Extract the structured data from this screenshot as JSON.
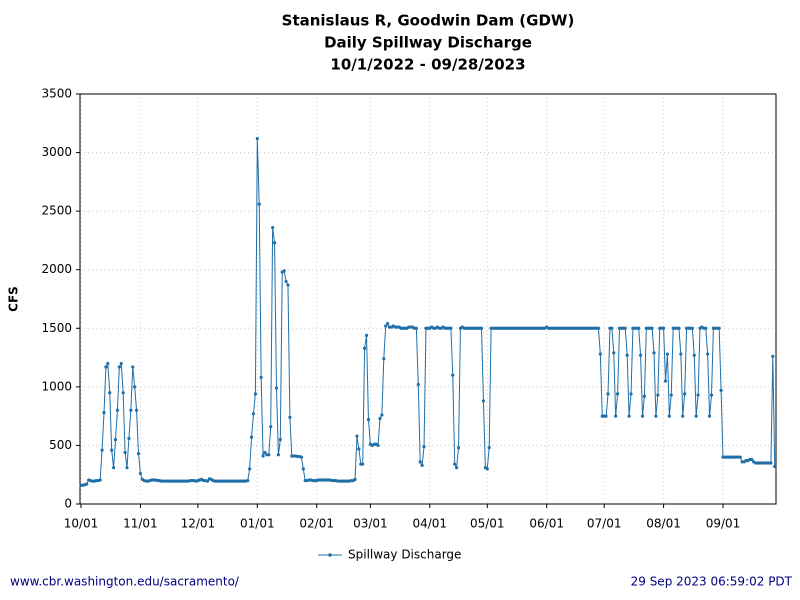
{
  "chart_data": {
    "type": "line",
    "title": "Stanislaus R, Goodwin Dam (GDW)",
    "subtitle": "Daily Spillway Discharge",
    "date_range": "10/1/2022 - 09/28/2023",
    "y_label": "CFS",
    "footer_left": "www.cbr.washington.edu/sacramento/",
    "footer_right": "29 Sep 2023 06:59:02 PDT",
    "ylim": [
      0,
      3500
    ],
    "yticks": [
      0,
      500,
      1000,
      1500,
      2000,
      2500,
      3000,
      3500
    ],
    "grid": true,
    "legend": "bottom",
    "categories": [
      "10/01",
      null,
      null,
      null,
      null,
      null,
      null,
      null,
      null,
      null,
      null,
      null,
      null,
      null,
      null,
      null,
      null,
      null,
      null,
      null,
      null,
      null,
      null,
      null,
      null,
      null,
      null,
      null,
      null,
      null,
      null,
      "11/01",
      null,
      null,
      null,
      null,
      null,
      null,
      null,
      null,
      null,
      null,
      null,
      null,
      null,
      null,
      null,
      null,
      null,
      null,
      null,
      null,
      null,
      null,
      null,
      null,
      null,
      null,
      null,
      null,
      null,
      "12/01",
      null,
      null,
      null,
      null,
      null,
      null,
      null,
      null,
      null,
      null,
      null,
      null,
      null,
      null,
      null,
      null,
      null,
      null,
      null,
      null,
      null,
      null,
      null,
      null,
      null,
      null,
      null,
      null,
      null,
      null,
      "01/01",
      null,
      null,
      null,
      null,
      null,
      null,
      null,
      null,
      null,
      null,
      null,
      null,
      null,
      null,
      null,
      null,
      null,
      null,
      null,
      null,
      null,
      null,
      null,
      null,
      null,
      null,
      null,
      null,
      null,
      null,
      "02/01",
      null,
      null,
      null,
      null,
      null,
      null,
      null,
      null,
      null,
      null,
      null,
      null,
      null,
      null,
      null,
      null,
      null,
      null,
      null,
      null,
      null,
      null,
      null,
      null,
      null,
      null,
      null,
      "03/01",
      null,
      null,
      null,
      null,
      null,
      null,
      null,
      null,
      null,
      null,
      null,
      null,
      null,
      null,
      null,
      null,
      null,
      null,
      null,
      null,
      null,
      null,
      null,
      null,
      null,
      null,
      null,
      null,
      null,
      null,
      "04/01",
      null,
      null,
      null,
      null,
      null,
      null,
      null,
      null,
      null,
      null,
      null,
      null,
      null,
      null,
      null,
      null,
      null,
      null,
      null,
      null,
      null,
      null,
      null,
      null,
      null,
      null,
      null,
      null,
      null,
      "05/01",
      null,
      null,
      null,
      null,
      null,
      null,
      null,
      null,
      null,
      null,
      null,
      null,
      null,
      null,
      null,
      null,
      null,
      null,
      null,
      null,
      null,
      null,
      null,
      null,
      null,
      null,
      null,
      null,
      null,
      null,
      "06/01",
      null,
      null,
      null,
      null,
      null,
      null,
      null,
      null,
      null,
      null,
      null,
      null,
      null,
      null,
      null,
      null,
      null,
      null,
      null,
      null,
      null,
      null,
      null,
      null,
      null,
      null,
      null,
      null,
      null,
      "07/01",
      null,
      null,
      null,
      null,
      null,
      null,
      null,
      null,
      null,
      null,
      null,
      null,
      null,
      null,
      null,
      null,
      null,
      null,
      null,
      null,
      null,
      null,
      null,
      null,
      null,
      null,
      null,
      null,
      null,
      null,
      "08/01",
      null,
      null,
      null,
      null,
      null,
      null,
      null,
      null,
      null,
      null,
      null,
      null,
      null,
      null,
      null,
      null,
      null,
      null,
      null,
      null,
      null,
      null,
      null,
      null,
      null,
      null,
      null,
      null,
      null,
      null,
      "09/01",
      null,
      null,
      null,
      null,
      null,
      null,
      null,
      null,
      null,
      null,
      null,
      null,
      null,
      null,
      null,
      null,
      null,
      null,
      null,
      null,
      null,
      null,
      null,
      null,
      null,
      null,
      null
    ],
    "series": [
      {
        "name": "Spillway Discharge",
        "color": "#1f6fa8",
        "values": [
          160,
          160,
          165,
          170,
          205,
          200,
          195,
          195,
          200,
          200,
          205,
          460,
          780,
          1170,
          1200,
          950,
          460,
          310,
          550,
          800,
          1170,
          1200,
          950,
          440,
          310,
          560,
          800,
          1170,
          1000,
          800,
          430,
          260,
          210,
          200,
          195,
          195,
          200,
          205,
          205,
          205,
          200,
          200,
          195,
          195,
          195,
          195,
          195,
          195,
          195,
          195,
          195,
          195,
          195,
          195,
          195,
          195,
          195,
          200,
          200,
          200,
          195,
          200,
          205,
          210,
          200,
          200,
          195,
          215,
          210,
          200,
          195,
          195,
          195,
          195,
          195,
          195,
          195,
          195,
          195,
          195,
          195,
          195,
          195,
          195,
          195,
          195,
          195,
          200,
          300,
          570,
          770,
          940,
          3120,
          2560,
          1080,
          410,
          440,
          420,
          420,
          660,
          2360,
          2230,
          990,
          420,
          550,
          1980,
          1990,
          1900,
          1870,
          740,
          410,
          410,
          410,
          405,
          405,
          400,
          300,
          200,
          200,
          205,
          205,
          200,
          200,
          200,
          205,
          205,
          205,
          205,
          205,
          205,
          205,
          200,
          200,
          200,
          195,
          195,
          195,
          195,
          195,
          195,
          195,
          200,
          200,
          210,
          580,
          470,
          340,
          340,
          1330,
          1440,
          720,
          510,
          500,
          510,
          510,
          500,
          730,
          760,
          1240,
          1520,
          1540,
          1510,
          1510,
          1520,
          1510,
          1510,
          1510,
          1500,
          1500,
          1500,
          1500,
          1510,
          1510,
          1510,
          1500,
          1500,
          1020,
          360,
          330,
          490,
          1500,
          1500,
          1500,
          1510,
          1500,
          1500,
          1510,
          1500,
          1500,
          1510,
          1500,
          1500,
          1500,
          1500,
          1100,
          340,
          310,
          480,
          1500,
          1510,
          1500,
          1500,
          1500,
          1500,
          1500,
          1500,
          1500,
          1500,
          1500,
          1500,
          880,
          310,
          300,
          480,
          1500,
          1500,
          1500,
          1500,
          1500,
          1500,
          1500,
          1500,
          1500,
          1500,
          1500,
          1500,
          1500,
          1500,
          1500,
          1500,
          1500,
          1500,
          1500,
          1500,
          1500,
          1500,
          1500,
          1500,
          1500,
          1500,
          1500,
          1500,
          1500,
          1510,
          1500,
          1500,
          1500,
          1500,
          1500,
          1500,
          1500,
          1500,
          1500,
          1500,
          1500,
          1500,
          1500,
          1500,
          1500,
          1500,
          1500,
          1500,
          1500,
          1500,
          1500,
          1500,
          1500,
          1500,
          1500,
          1500,
          1500,
          1280,
          750,
          750,
          750,
          940,
          1500,
          1500,
          1290,
          750,
          940,
          1500,
          1500,
          1500,
          1500,
          1270,
          750,
          940,
          1500,
          1500,
          1500,
          1500,
          1270,
          750,
          920,
          1500,
          1500,
          1500,
          1500,
          1290,
          750,
          930,
          1500,
          1500,
          1500,
          1050,
          1280,
          750,
          930,
          1500,
          1500,
          1500,
          1500,
          1280,
          750,
          940,
          1500,
          1500,
          1500,
          1500,
          1270,
          750,
          930,
          1500,
          1510,
          1500,
          1500,
          1280,
          750,
          930,
          1500,
          1500,
          1500,
          1500,
          970,
          400,
          400,
          400,
          400,
          400,
          400,
          400,
          400,
          400,
          400,
          360,
          360,
          370,
          370,
          380,
          380,
          360,
          350,
          350,
          350,
          350,
          350,
          350,
          350,
          350,
          350,
          1260,
          320
        ]
      }
    ]
  }
}
